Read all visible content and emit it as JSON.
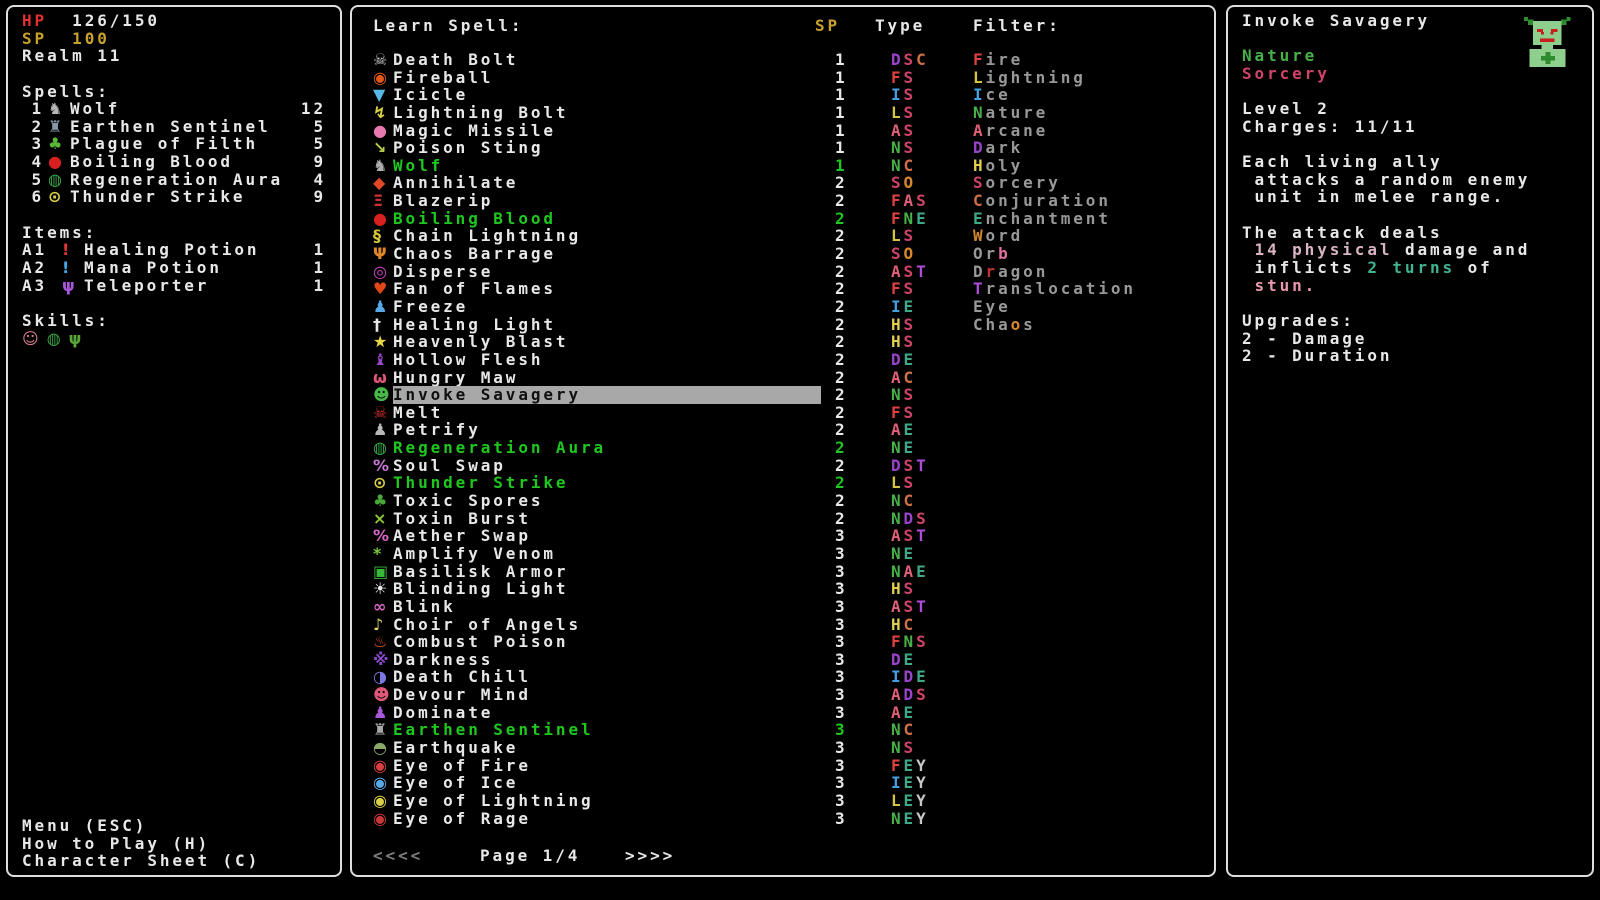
{
  "colors": {
    "white": "#e8e8e8",
    "known_green": "#1ec81e",
    "hp_red": "#e03030",
    "sp_gold": "#c8a22a",
    "filter_gray": "#989898",
    "highlight_bar": "#a8a8a8",
    "pale": "#d8b4c4",
    "teal": "#3fb392",
    "pink": "#e898ac"
  },
  "type_colors": {
    "F": "#e04040",
    "S": "#d04468",
    "C": "#cf7048",
    "D": "#9a44cc",
    "I": "#44a0e0",
    "L": "#d4c440",
    "A": "#e06078",
    "N": "#48b048",
    "H": "#e0d04c",
    "E": "#3fa888",
    "O": "#d8882c",
    "T": "#b04cd8",
    "Y": "#c8c8c8"
  },
  "left_panel": {
    "hp_label": "HP",
    "hp_value": "126/150",
    "sp_label": "SP",
    "sp_value": "100",
    "realm": "Realm 11",
    "spells_header": "Spells:",
    "spells": [
      {
        "num": "1",
        "icon": "wolf-icon",
        "glyph": "♞",
        "icon_color": "#b8b8b8",
        "name": "Wolf",
        "count": "12"
      },
      {
        "num": "2",
        "icon": "earthen-sentinel-icon",
        "glyph": "♜",
        "icon_color": "#8898a8",
        "name": "Earthen Sentinel",
        "count": "5"
      },
      {
        "num": "3",
        "icon": "plague-of-filth-icon",
        "glyph": "♣",
        "icon_color": "#58b838",
        "name": "Plague of Filth",
        "count": "5"
      },
      {
        "num": "4",
        "icon": "boiling-blood-icon",
        "glyph": "●",
        "icon_color": "#d82020",
        "name": "Boiling Blood",
        "count": "9"
      },
      {
        "num": "5",
        "icon": "regeneration-aura-icon",
        "glyph": "◍",
        "icon_color": "#38a848",
        "name": "Regeneration Aura",
        "count": "4"
      },
      {
        "num": "6",
        "icon": "thunder-strike-icon",
        "glyph": "⊙",
        "icon_color": "#d8d048",
        "name": "Thunder Strike",
        "count": "9"
      }
    ],
    "items_header": "Items:",
    "items": [
      {
        "slot": "A1",
        "icon": "healing-potion-icon",
        "glyph": "!",
        "icon_color": "#e03838",
        "name": "Healing Potion",
        "count": "1"
      },
      {
        "slot": "A2",
        "icon": "mana-potion-icon",
        "glyph": "!",
        "icon_color": "#48a8e8",
        "name": "Mana Potion",
        "count": "1"
      },
      {
        "slot": "A3",
        "icon": "teleporter-icon",
        "glyph": "ψ",
        "icon_color": "#a858d8",
        "name": "Teleporter",
        "count": "1"
      }
    ],
    "skills_header": "Skills:",
    "skills": [
      {
        "icon": "bunny-skill-icon",
        "glyph": "☺",
        "icon_color": "#e08090"
      },
      {
        "icon": "regen-skill-icon",
        "glyph": "◍",
        "icon_color": "#38a848"
      },
      {
        "icon": "beast-skill-icon",
        "glyph": "ψ",
        "icon_color": "#58a838"
      }
    ],
    "menu": [
      "Menu (ESC)",
      "How to Play (H)",
      "Character Sheet (C)"
    ]
  },
  "learn_panel": {
    "title": "Learn Spell:",
    "sp_header": "SP",
    "type_header": "Type",
    "filter_header": "Filter:",
    "spells": [
      {
        "name": "Death Bolt",
        "sp": "1",
        "types": "DSC",
        "state": "normal",
        "icon": "skeleton-icon",
        "glyph": "☠",
        "icon_color": "#c8c8c8"
      },
      {
        "name": "Fireball",
        "sp": "1",
        "types": "FS",
        "state": "normal",
        "icon": "fireball-icon",
        "glyph": "◉",
        "icon_color": "#e05818"
      },
      {
        "name": "Icicle",
        "sp": "1",
        "types": "IS",
        "state": "normal",
        "icon": "icicle-icon",
        "glyph": "▼",
        "icon_color": "#58b8e8"
      },
      {
        "name": "Lightning Bolt",
        "sp": "1",
        "types": "LS",
        "state": "normal",
        "icon": "lightning-bolt-icon",
        "glyph": "↯",
        "icon_color": "#d8d048"
      },
      {
        "name": "Magic Missile",
        "sp": "1",
        "types": "AS",
        "state": "normal",
        "icon": "magic-missile-icon",
        "glyph": "●",
        "icon_color": "#e878b0"
      },
      {
        "name": "Poison Sting",
        "sp": "1",
        "types": "NS",
        "state": "normal",
        "icon": "poison-sting-icon",
        "glyph": "↘",
        "icon_color": "#b8c848"
      },
      {
        "name": "Wolf",
        "sp": "1",
        "types": "NC",
        "state": "known",
        "icon": "wolf-icon",
        "glyph": "♞",
        "icon_color": "#b0b0b0"
      },
      {
        "name": "Annihilate",
        "sp": "2",
        "types": "SO",
        "state": "normal",
        "icon": "annihilate-icon",
        "glyph": "◆",
        "icon_color": "#e04828"
      },
      {
        "name": "Blazerip",
        "sp": "2",
        "types": "FAS",
        "state": "normal",
        "icon": "blazerip-icon",
        "glyph": "Ξ",
        "icon_color": "#d03030"
      },
      {
        "name": "Boiling Blood",
        "sp": "2",
        "types": "FNE",
        "state": "known",
        "icon": "boiling-blood-icon",
        "glyph": "●",
        "icon_color": "#d82020"
      },
      {
        "name": "Chain Lightning",
        "sp": "2",
        "types": "LS",
        "state": "normal",
        "icon": "chain-lightning-icon",
        "glyph": "§",
        "icon_color": "#d8c838"
      },
      {
        "name": "Chaos Barrage",
        "sp": "2",
        "types": "SO",
        "state": "normal",
        "icon": "chaos-barrage-icon",
        "glyph": "Ψ",
        "icon_color": "#e08828"
      },
      {
        "name": "Disperse",
        "sp": "2",
        "types": "AST",
        "state": "normal",
        "icon": "disperse-icon",
        "glyph": "◎",
        "icon_color": "#d048c8"
      },
      {
        "name": "Fan of Flames",
        "sp": "2",
        "types": "FS",
        "state": "normal",
        "icon": "fan-of-flames-icon",
        "glyph": "♥",
        "icon_color": "#e04818"
      },
      {
        "name": "Freeze",
        "sp": "2",
        "types": "IE",
        "state": "normal",
        "icon": "freeze-icon",
        "glyph": "♟",
        "icon_color": "#58a8e8"
      },
      {
        "name": "Healing Light",
        "sp": "2",
        "types": "HS",
        "state": "normal",
        "icon": "healing-light-icon",
        "glyph": "†",
        "icon_color": "#e8e8e8"
      },
      {
        "name": "Heavenly Blast",
        "sp": "2",
        "types": "HS",
        "state": "normal",
        "icon": "heavenly-blast-icon",
        "glyph": "★",
        "icon_color": "#e8d848"
      },
      {
        "name": "Hollow Flesh",
        "sp": "2",
        "types": "DE",
        "state": "normal",
        "icon": "hollow-flesh-icon",
        "glyph": "♝",
        "icon_color": "#9848c8"
      },
      {
        "name": "Hungry Maw",
        "sp": "2",
        "types": "AC",
        "state": "normal",
        "icon": "hungry-maw-icon",
        "glyph": "ω",
        "icon_color": "#e05878"
      },
      {
        "name": "Invoke Savagery",
        "sp": "2",
        "types": "NS",
        "state": "selected",
        "icon": "goblin-face-icon",
        "glyph": "☻",
        "icon_color": "#48b848"
      },
      {
        "name": "Melt",
        "sp": "2",
        "types": "FS",
        "state": "normal",
        "icon": "melt-skull-icon",
        "glyph": "☠",
        "icon_color": "#d83030"
      },
      {
        "name": "Petrify",
        "sp": "2",
        "types": "AE",
        "state": "normal",
        "icon": "petrify-icon",
        "glyph": "♟",
        "icon_color": "#b8b8b8"
      },
      {
        "name": "Regeneration Aura",
        "sp": "2",
        "types": "NE",
        "state": "known",
        "icon": "regeneration-aura-icon",
        "glyph": "◍",
        "icon_color": "#38a848"
      },
      {
        "name": "Soul Swap",
        "sp": "2",
        "types": "DST",
        "state": "normal",
        "icon": "soul-swap-icon",
        "glyph": "%",
        "icon_color": "#c878d8"
      },
      {
        "name": "Thunder Strike",
        "sp": "2",
        "types": "LS",
        "state": "known",
        "icon": "thunder-strike-icon",
        "glyph": "⊙",
        "icon_color": "#d8d048"
      },
      {
        "name": "Toxic Spores",
        "sp": "2",
        "types": "NC",
        "state": "normal",
        "icon": "toxic-spores-icon",
        "glyph": "♣",
        "icon_color": "#48a838"
      },
      {
        "name": "Toxin Burst",
        "sp": "2",
        "types": "NDS",
        "state": "normal",
        "icon": "toxin-burst-icon",
        "glyph": "×",
        "icon_color": "#88c838"
      },
      {
        "name": "Aether Swap",
        "sp": "3",
        "types": "AST",
        "state": "normal",
        "icon": "aether-swap-icon",
        "glyph": "%",
        "icon_color": "#d868c8"
      },
      {
        "name": "Amplify Venom",
        "sp": "3",
        "types": "NE",
        "state": "normal",
        "icon": "amplify-venom-icon",
        "glyph": "*",
        "icon_color": "#78c838"
      },
      {
        "name": "Basilisk Armor",
        "sp": "3",
        "types": "NAE",
        "state": "normal",
        "icon": "basilisk-armor-icon",
        "glyph": "▣",
        "icon_color": "#38b838"
      },
      {
        "name": "Blinding Light",
        "sp": "3",
        "types": "HS",
        "state": "normal",
        "icon": "blinding-light-icon",
        "glyph": "☀",
        "icon_color": "#e8e8e8"
      },
      {
        "name": "Blink",
        "sp": "3",
        "types": "AST",
        "state": "normal",
        "icon": "blink-icon",
        "glyph": "∞",
        "icon_color": "#d868c8"
      },
      {
        "name": "Choir of Angels",
        "sp": "3",
        "types": "HC",
        "state": "normal",
        "icon": "choir-of-angels-icon",
        "glyph": "♪",
        "icon_color": "#e8d868"
      },
      {
        "name": "Combust Poison",
        "sp": "3",
        "types": "FNS",
        "state": "normal",
        "icon": "combust-poison-icon",
        "glyph": "♨",
        "icon_color": "#e05828"
      },
      {
        "name": "Darkness",
        "sp": "3",
        "types": "DE",
        "state": "normal",
        "icon": "darkness-icon",
        "glyph": "※",
        "icon_color": "#8848c8"
      },
      {
        "name": "Death Chill",
        "sp": "3",
        "types": "IDE",
        "state": "normal",
        "icon": "death-chill-icon",
        "glyph": "◑",
        "icon_color": "#7878e0"
      },
      {
        "name": "Devour Mind",
        "sp": "3",
        "types": "ADS",
        "state": "normal",
        "icon": "devour-mind-icon",
        "glyph": "☻",
        "icon_color": "#e05878"
      },
      {
        "name": "Dominate",
        "sp": "3",
        "types": "AE",
        "state": "normal",
        "icon": "dominate-icon",
        "glyph": "♟",
        "icon_color": "#a858d8"
      },
      {
        "name": "Earthen Sentinel",
        "sp": "3",
        "types": "NC",
        "state": "known",
        "icon": "earthen-sentinel-icon",
        "glyph": "♜",
        "icon_color": "#a8a8a8"
      },
      {
        "name": "Earthquake",
        "sp": "3",
        "types": "NS",
        "state": "normal",
        "icon": "earthquake-icon",
        "glyph": "◓",
        "icon_color": "#88a868"
      },
      {
        "name": "Eye of Fire",
        "sp": "3",
        "types": "FEY",
        "state": "normal",
        "icon": "eye-of-fire-icon",
        "glyph": "◉",
        "icon_color": "#d84040"
      },
      {
        "name": "Eye of Ice",
        "sp": "3",
        "types": "IEY",
        "state": "normal",
        "icon": "eye-of-ice-icon",
        "glyph": "◉",
        "icon_color": "#58a8e8"
      },
      {
        "name": "Eye of Lightning",
        "sp": "3",
        "types": "LEY",
        "state": "normal",
        "icon": "eye-of-lightning-icon",
        "glyph": "◉",
        "icon_color": "#d8d048"
      },
      {
        "name": "Eye of Rage",
        "sp": "3",
        "types": "NEY",
        "state": "normal",
        "icon": "eye-of-rage-icon",
        "glyph": "◉",
        "icon_color": "#c83838"
      }
    ],
    "filters": [
      {
        "pre": "",
        "key": "F",
        "post": "ire",
        "color": "#e04040",
        "name": "fire"
      },
      {
        "pre": "",
        "key": "L",
        "post": "ightning",
        "color": "#d4c440",
        "name": "lightning"
      },
      {
        "pre": "",
        "key": "I",
        "post": "ce",
        "color": "#44a0e0",
        "name": "ice"
      },
      {
        "pre": "",
        "key": "N",
        "post": "ature",
        "color": "#48b048",
        "name": "nature"
      },
      {
        "pre": "",
        "key": "A",
        "post": "rcane",
        "color": "#e06078",
        "name": "arcane"
      },
      {
        "pre": "",
        "key": "D",
        "post": "ark",
        "color": "#9a44cc",
        "name": "dark"
      },
      {
        "pre": "",
        "key": "H",
        "post": "oly",
        "color": "#e0d04c",
        "name": "holy"
      },
      {
        "pre": "",
        "key": "S",
        "post": "orcery",
        "color": "#d04468",
        "name": "sorcery"
      },
      {
        "pre": "",
        "key": "C",
        "post": "onjuration",
        "color": "#cf7048",
        "name": "conjuration"
      },
      {
        "pre": "",
        "key": "E",
        "post": "nchantment",
        "color": "#3fa888",
        "name": "enchantment"
      },
      {
        "pre": "",
        "key": "W",
        "post": "ord",
        "color": "#d08830",
        "name": "word"
      },
      {
        "pre": "Or",
        "key": "b",
        "post": "",
        "color": "#e070a0",
        "name": "orb"
      },
      {
        "pre": "D",
        "key": "r",
        "post": "agon",
        "color": "#c03434",
        "name": "dragon"
      },
      {
        "pre": "",
        "key": "T",
        "post": "ranslocation",
        "color": "#b04cd8",
        "name": "translocation"
      },
      {
        "pre": "Eye",
        "key": "",
        "post": "",
        "color": "",
        "name": "eye"
      },
      {
        "pre": "Cha",
        "key": "o",
        "post": "s",
        "color": "#d8882c",
        "name": "chaos"
      }
    ],
    "pagination": {
      "prev": "<<<<",
      "label": "Page 1/4",
      "next": ">>>>"
    }
  },
  "detail_panel": {
    "title": "Invoke Savagery",
    "portrait": "goblin-portrait-icon",
    "schools": [
      {
        "name": "Nature",
        "color": "#48b048"
      },
      {
        "name": "Sorcery",
        "color": "#d04468"
      }
    ],
    "level": "Level 2",
    "charges": "Charges: 11/11",
    "description": [
      [
        [
          "Each living ally",
          "w"
        ]
      ],
      [
        [
          " attacks a random enemy",
          "w"
        ]
      ],
      [
        [
          " unit in melee range.",
          "w"
        ]
      ],
      [],
      [
        [
          "The attack deals",
          "w"
        ]
      ],
      [
        [
          " ",
          "w"
        ],
        [
          "14 physical",
          "pale"
        ],
        [
          " damage and",
          "w"
        ]
      ],
      [
        [
          " inflicts ",
          "w"
        ],
        [
          "2 turns",
          "teal"
        ],
        [
          " of",
          "w"
        ]
      ],
      [
        [
          " ",
          "w"
        ],
        [
          "stun.",
          "pink"
        ]
      ],
      [],
      [
        [
          "Upgrades:",
          "w"
        ]
      ],
      [
        [
          "2 - Damage",
          "w"
        ]
      ],
      [
        [
          "2 - Duration",
          "w"
        ]
      ]
    ]
  }
}
